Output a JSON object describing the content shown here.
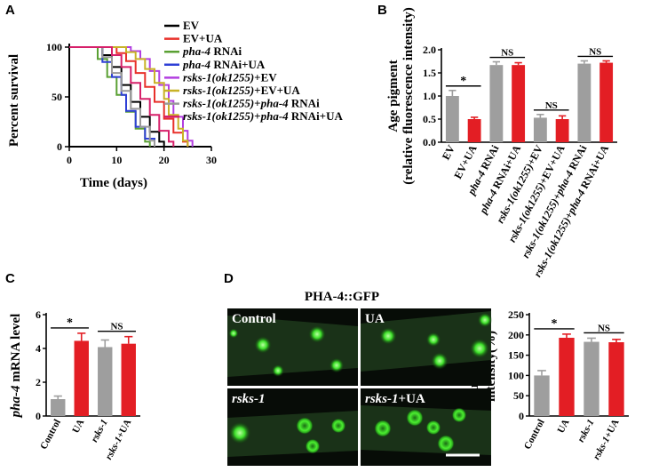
{
  "panels": {
    "a": "A",
    "b": "B",
    "c": "C",
    "d": "D"
  },
  "colors": {
    "EV": "#000000",
    "EV+UA": "#e8302a",
    "pha-4 RNAi": "#5aa033",
    "pha-4 RNAi+UA": "#2e3fd6",
    "rsks-1(ok1255)+EV": "#b23ee0",
    "rsks-1(ok1255)+EV+UA": "#c8b227",
    "rsks-1(ok1255)+pha-4 RNAi": "#9a9a9a",
    "rsks-1(ok1255)+pha-4 RNAi+UA": "#d6206a",
    "grey_bar": "#9e9e9e",
    "red_bar": "#e31e24"
  },
  "chart_data": [
    {
      "panel": "A",
      "type": "line",
      "step": true,
      "xlabel": "Time (days)",
      "ylabel": "Percent survival",
      "xlim": [
        0,
        30
      ],
      "ylim": [
        0,
        100
      ],
      "xticks": [
        "0",
        "10",
        "20",
        "30"
      ],
      "yticks": [
        "0",
        "50",
        "100"
      ],
      "legend_position": "top-right",
      "series": [
        {
          "name": "EV",
          "color": "#000000",
          "points": [
            [
              0,
              100
            ],
            [
              7,
              100
            ],
            [
              7,
              92
            ],
            [
              9,
              92
            ],
            [
              9,
              80
            ],
            [
              11,
              80
            ],
            [
              11,
              62
            ],
            [
              13,
              62
            ],
            [
              13,
              45
            ],
            [
              15,
              45
            ],
            [
              15,
              30
            ],
            [
              17,
              30
            ],
            [
              17,
              15
            ],
            [
              19,
              15
            ],
            [
              19,
              5
            ],
            [
              20,
              5
            ],
            [
              20,
              0
            ]
          ]
        },
        {
          "name": "EV+UA",
          "color": "#e8302a",
          "points": [
            [
              0,
              100
            ],
            [
              10,
              100
            ],
            [
              10,
              94
            ],
            [
              12,
              94
            ],
            [
              12,
              86
            ],
            [
              14,
              86
            ],
            [
              14,
              74
            ],
            [
              16,
              74
            ],
            [
              16,
              60
            ],
            [
              18,
              60
            ],
            [
              18,
              45
            ],
            [
              20,
              45
            ],
            [
              20,
              28
            ],
            [
              22,
              28
            ],
            [
              22,
              14
            ],
            [
              24,
              14
            ],
            [
              24,
              5
            ],
            [
              25,
              5
            ],
            [
              25,
              0
            ]
          ]
        },
        {
          "name": "pha-4 RNAi",
          "color": "#5aa033",
          "points": [
            [
              0,
              100
            ],
            [
              6,
              100
            ],
            [
              6,
              88
            ],
            [
              8,
              88
            ],
            [
              8,
              70
            ],
            [
              10,
              70
            ],
            [
              10,
              52
            ],
            [
              12,
              52
            ],
            [
              12,
              35
            ],
            [
              14,
              35
            ],
            [
              14,
              18
            ],
            [
              16,
              18
            ],
            [
              16,
              5
            ],
            [
              17,
              5
            ],
            [
              17,
              0
            ]
          ]
        },
        {
          "name": "pha-4 RNAi+UA",
          "color": "#2e3fd6",
          "points": [
            [
              0,
              100
            ],
            [
              7,
              100
            ],
            [
              7,
              85
            ],
            [
              9,
              85
            ],
            [
              9,
              70
            ],
            [
              11,
              70
            ],
            [
              11,
              52
            ],
            [
              12,
              52
            ],
            [
              12,
              36
            ],
            [
              14,
              36
            ],
            [
              14,
              20
            ],
            [
              16,
              20
            ],
            [
              16,
              8
            ],
            [
              18,
              8
            ],
            [
              18,
              0
            ]
          ]
        },
        {
          "name": "rsks-1(ok1255)+EV",
          "color": "#b23ee0",
          "points": [
            [
              0,
              100
            ],
            [
              13,
              100
            ],
            [
              13,
              96
            ],
            [
              15,
              96
            ],
            [
              15,
              88
            ],
            [
              17,
              88
            ],
            [
              17,
              76
            ],
            [
              19,
              76
            ],
            [
              19,
              62
            ],
            [
              21,
              62
            ],
            [
              21,
              46
            ],
            [
              22,
              46
            ],
            [
              22,
              30
            ],
            [
              24,
              30
            ],
            [
              24,
              16
            ],
            [
              25,
              16
            ],
            [
              25,
              6
            ],
            [
              26,
              6
            ],
            [
              26,
              0
            ]
          ]
        },
        {
          "name": "rsks-1(ok1255)+EV+UA",
          "color": "#c8b227",
          "points": [
            [
              0,
              100
            ],
            [
              12,
              100
            ],
            [
              12,
              95
            ],
            [
              14,
              95
            ],
            [
              14,
              88
            ],
            [
              16,
              88
            ],
            [
              16,
              78
            ],
            [
              18,
              78
            ],
            [
              18,
              64
            ],
            [
              20,
              64
            ],
            [
              20,
              48
            ],
            [
              21,
              48
            ],
            [
              21,
              32
            ],
            [
              23,
              32
            ],
            [
              23,
              18
            ],
            [
              24,
              18
            ],
            [
              24,
              6
            ],
            [
              25,
              6
            ],
            [
              25,
              0
            ]
          ]
        },
        {
          "name": "rsks-1(ok1255)+pha-4 RNAi",
          "color": "#9a9a9a",
          "points": [
            [
              0,
              100
            ],
            [
              7,
              100
            ],
            [
              7,
              90
            ],
            [
              9,
              90
            ],
            [
              9,
              74
            ],
            [
              11,
              74
            ],
            [
              11,
              56
            ],
            [
              13,
              56
            ],
            [
              13,
              38
            ],
            [
              15,
              38
            ],
            [
              15,
              20
            ],
            [
              17,
              20
            ],
            [
              17,
              6
            ],
            [
              18,
              6
            ],
            [
              18,
              0
            ]
          ]
        },
        {
          "name": "rsks-1(ok1255)+pha-4 RNAi+UA",
          "color": "#d6206a",
          "points": [
            [
              0,
              100
            ],
            [
              9,
              100
            ],
            [
              9,
              92
            ],
            [
              11,
              92
            ],
            [
              11,
              80
            ],
            [
              13,
              80
            ],
            [
              13,
              64
            ],
            [
              15,
              64
            ],
            [
              15,
              48
            ],
            [
              17,
              48
            ],
            [
              17,
              32
            ],
            [
              19,
              32
            ],
            [
              19,
              16
            ],
            [
              21,
              16
            ],
            [
              21,
              5
            ],
            [
              22,
              5
            ],
            [
              22,
              0
            ]
          ]
        }
      ],
      "legend": [
        {
          "parts": [
            [
              "EV",
              false
            ]
          ],
          "color": "#000000"
        },
        {
          "parts": [
            [
              "EV+UA",
              false
            ]
          ],
          "color": "#e8302a"
        },
        {
          "parts": [
            [
              "pha-4",
              true
            ],
            [
              " RNAi",
              false
            ]
          ],
          "color": "#5aa033"
        },
        {
          "parts": [
            [
              "pha-4",
              true
            ],
            [
              " RNAi+UA",
              false
            ]
          ],
          "color": "#2e3fd6"
        },
        {
          "parts": [
            [
              "rsks-1(ok1255)",
              true
            ],
            [
              "+EV",
              false
            ]
          ],
          "color": "#b23ee0"
        },
        {
          "parts": [
            [
              "rsks-1(ok1255)",
              true
            ],
            [
              "+EV+UA",
              false
            ]
          ],
          "color": "#c8b227"
        },
        {
          "parts": [
            [
              "rsks-1(ok1255)",
              true
            ],
            [
              "+",
              false
            ],
            [
              "pha-4",
              true
            ],
            [
              " RNAi",
              false
            ]
          ],
          "color": "#9a9a9a"
        },
        {
          "parts": [
            [
              "rsks-1(ok1255)",
              true
            ],
            [
              "+",
              false
            ],
            [
              "pha-4",
              true
            ],
            [
              " RNAi+UA",
              false
            ]
          ],
          "color": "#d6206a"
        }
      ]
    },
    {
      "panel": "B",
      "type": "bar",
      "ylabel": "Age pigment",
      "ylabel2": "(relative fluorescence intensity)",
      "ylim": [
        0,
        2.0
      ],
      "yticks": [
        "0.0",
        "0.5",
        "1.0",
        "1.5",
        "2.0"
      ],
      "categories": [
        [
          [
            "EV",
            false
          ]
        ],
        [
          [
            "EV+UA",
            false
          ]
        ],
        [
          [
            "pha-4",
            true
          ],
          [
            " RNAi",
            false
          ]
        ],
        [
          [
            "pha-4",
            true
          ],
          [
            " RNAi+UA",
            false
          ]
        ],
        [
          [
            "rsks-1(ok1255)",
            true
          ],
          [
            "+EV",
            false
          ]
        ],
        [
          [
            "rsks-1(ok1255)",
            true
          ],
          [
            "+EV+UA",
            false
          ]
        ],
        [
          [
            "rsks-1(ok1255)",
            true
          ],
          [
            "+",
            false
          ],
          [
            "pha-4",
            true
          ],
          [
            " RNAi",
            false
          ]
        ],
        [
          [
            "rsks-1(ok1255)",
            true
          ],
          [
            "+",
            false
          ],
          [
            "pha-4",
            true
          ],
          [
            " RNAi+UA",
            false
          ]
        ]
      ],
      "values": [
        1.0,
        0.5,
        1.67,
        1.67,
        0.53,
        0.5,
        1.7,
        1.72
      ],
      "errors": [
        0.12,
        0.04,
        0.07,
        0.05,
        0.07,
        0.07,
        0.06,
        0.04
      ],
      "bar_colors": [
        "grey",
        "red",
        "grey",
        "red",
        "grey",
        "red",
        "grey",
        "red"
      ],
      "significance": [
        {
          "from": 0,
          "to": 1,
          "label": "*"
        },
        {
          "from": 2,
          "to": 3,
          "label": "NS"
        },
        {
          "from": 4,
          "to": 5,
          "label": "NS"
        },
        {
          "from": 6,
          "to": 7,
          "label": "NS"
        }
      ]
    },
    {
      "panel": "C",
      "type": "bar",
      "ylabel_parts": [
        [
          "pha-4",
          true
        ],
        [
          " mRNA level",
          false
        ]
      ],
      "ylim": [
        0,
        6
      ],
      "yticks": [
        "0",
        "2",
        "4",
        "6"
      ],
      "categories": [
        [
          [
            "Control",
            false
          ]
        ],
        [
          [
            "UA",
            false
          ]
        ],
        [
          [
            "rsks-1",
            true
          ]
        ],
        [
          [
            "rsks-1",
            true
          ],
          [
            "+UA",
            false
          ]
        ]
      ],
      "values": [
        1.0,
        4.45,
        4.08,
        4.28
      ],
      "errors": [
        0.18,
        0.45,
        0.42,
        0.42
      ],
      "bar_colors": [
        "grey",
        "red",
        "grey",
        "red"
      ],
      "significance": [
        {
          "from": 0,
          "to": 1,
          "label": "*"
        },
        {
          "from": 2,
          "to": 3,
          "label": "NS"
        }
      ]
    },
    {
      "panel": "D",
      "type": "bar",
      "ylabel": "Fluorescence",
      "ylabel2": "intensity(%)",
      "ylim": [
        0,
        250
      ],
      "yticks": [
        "0",
        "50",
        "100",
        "150",
        "200",
        "250"
      ],
      "categories": [
        [
          [
            "Control",
            false
          ]
        ],
        [
          [
            "UA",
            false
          ]
        ],
        [
          [
            "rsks-1",
            true
          ]
        ],
        [
          [
            "rsks-1",
            true
          ],
          [
            "+UA",
            false
          ]
        ]
      ],
      "values": [
        100,
        193,
        183,
        182
      ],
      "errors": [
        12,
        9,
        9,
        7
      ],
      "bar_colors": [
        "grey",
        "red",
        "grey",
        "red"
      ],
      "significance": [
        {
          "from": 0,
          "to": 1,
          "label": "*"
        },
        {
          "from": 2,
          "to": 3,
          "label": "NS"
        }
      ]
    }
  ],
  "microscopy": {
    "title": "PHA-4::GFP",
    "panels": [
      {
        "parts": [
          [
            "Control",
            false
          ]
        ]
      },
      {
        "parts": [
          [
            "UA",
            false
          ]
        ]
      },
      {
        "parts": [
          [
            "rsks-1",
            true
          ]
        ]
      },
      {
        "parts": [
          [
            "rsks-1",
            true
          ],
          [
            "+UA",
            false
          ]
        ]
      }
    ]
  }
}
